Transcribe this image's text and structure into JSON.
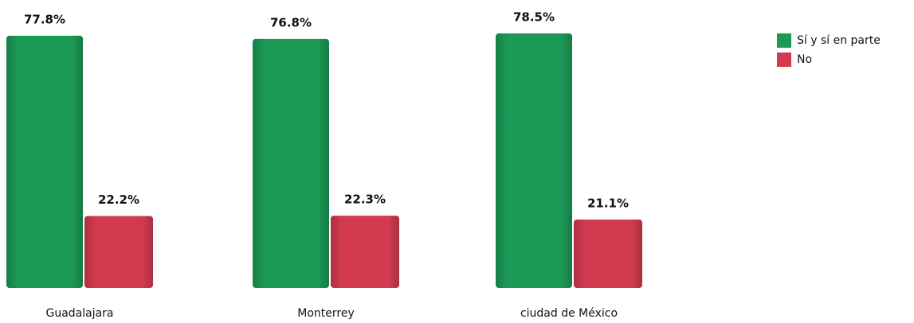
{
  "chart_data": {
    "type": "bar",
    "categories": [
      "Guadalajara",
      "Monterrey",
      "ciudad de México"
    ],
    "series": [
      {
        "name": "Sí y sí en parte",
        "color": "#1b9a56",
        "values": [
          77.8,
          76.8,
          78.5
        ],
        "value_labels": [
          "77.8%",
          "76.8%",
          "78.5%"
        ]
      },
      {
        "name": "No",
        "color": "#d23a4f",
        "values": [
          22.2,
          22.3,
          21.1
        ],
        "value_labels": [
          "22.2%",
          "22.3%",
          "21.1%"
        ]
      }
    ],
    "legend": "top-right"
  }
}
